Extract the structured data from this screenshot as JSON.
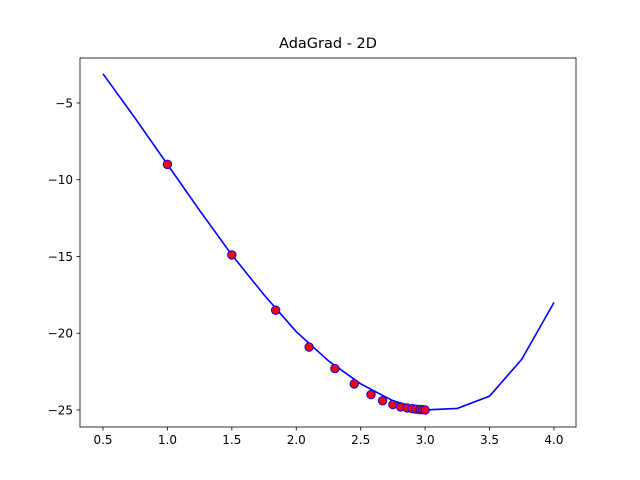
{
  "chart_data": {
    "type": "line",
    "title": "AdaGrad - 2D",
    "xlim": [
      0.3215,
      4.171
    ],
    "ylim": [
      -26.11,
      -2.07
    ],
    "xticks": [
      0.5,
      {
        "value": 1.0,
        "label": "1.0"
      },
      1.5,
      {
        "value": 2.0,
        "label": "2.0"
      },
      2.5,
      {
        "value": 3.0,
        "label": "3.0"
      },
      3.5,
      {
        "value": 4.0,
        "label": "4.0"
      }
    ],
    "yticks": [
      {
        "value": -25,
        "label": "−25"
      },
      {
        "value": -20,
        "label": "−20"
      },
      {
        "value": -15,
        "label": "−15"
      },
      {
        "value": -10,
        "label": "−10"
      },
      {
        "value": -5,
        "label": "−5"
      }
    ],
    "series": [
      {
        "kind": "line",
        "color": "#0000ff",
        "x": [
          0.5,
          0.75,
          1.0,
          1.25,
          1.5,
          1.75,
          2.0,
          2.25,
          2.5,
          2.75,
          3.0,
          3.25,
          3.5,
          3.75,
          4.0
        ],
        "values": [
          -3.1,
          -6.0,
          -9.0,
          -12.0,
          -14.9,
          -17.5,
          -19.9,
          -21.8,
          -23.3,
          -24.4,
          -25.0,
          -24.9,
          -24.1,
          -21.7,
          -18.0
        ]
      },
      {
        "kind": "scatter",
        "color": "#ff0000",
        "edge": "#0000ff",
        "x": [
          1.0,
          1.5,
          1.84,
          2.1,
          2.3,
          2.45,
          2.58,
          2.67,
          2.75,
          2.81,
          2.86,
          2.9,
          2.93,
          2.96,
          2.98,
          3.0
        ],
        "values": [
          -9.0,
          -14.9,
          -18.5,
          -20.9,
          -22.3,
          -23.3,
          -24.0,
          -24.4,
          -24.65,
          -24.8,
          -24.87,
          -24.92,
          -24.95,
          -24.97,
          -24.98,
          -25.0
        ]
      }
    ]
  }
}
